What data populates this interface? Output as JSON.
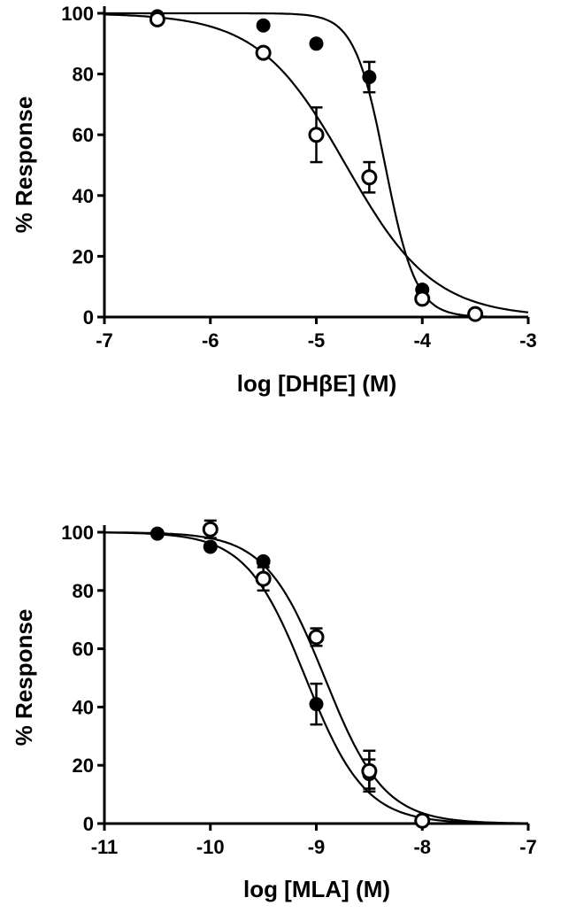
{
  "chart_data": [
    {
      "type": "scatter",
      "title": "",
      "xlabel": "log [DHβE] (M)",
      "ylabel": "% Response",
      "xlim": [
        -7,
        -3
      ],
      "ylim": [
        0,
        100
      ],
      "xticks": [
        "-7",
        "-6",
        "-5",
        "-4",
        "-3"
      ],
      "yticks": [
        "0",
        "20",
        "40",
        "60",
        "80",
        "100"
      ],
      "grid": false,
      "series": [
        {
          "name": "filled",
          "marker": "filled-circle",
          "x": [
            -6.5,
            -5.5,
            -5,
            -4.5,
            -4,
            -3.5
          ],
          "y": [
            99,
            96,
            90,
            79,
            9,
            1
          ],
          "err": [
            0,
            0,
            0,
            5,
            0,
            0
          ],
          "fit": {
            "top": 100,
            "bottom": 0,
            "logIC50": -4.35,
            "hill": 3.0
          }
        },
        {
          "name": "open",
          "marker": "open-circle",
          "x": [
            -6.5,
            -5.5,
            -5,
            -4.5,
            -4,
            -3.5
          ],
          "y": [
            98,
            87,
            60,
            46,
            6,
            1
          ],
          "err": [
            0,
            0,
            9,
            5,
            0,
            0
          ],
          "fit": {
            "top": 100,
            "bottom": 0,
            "logIC50": -4.72,
            "hill": 1.05
          }
        }
      ]
    },
    {
      "type": "scatter",
      "title": "",
      "xlabel": "log [MLA] (M)",
      "ylabel": "% Response",
      "xlim": [
        -11,
        -7
      ],
      "ylim": [
        0,
        100
      ],
      "xticks": [
        "-11",
        "-10",
        "-9",
        "-8",
        "-7"
      ],
      "yticks": [
        "0",
        "20",
        "40",
        "60",
        "80",
        "100"
      ],
      "grid": false,
      "series": [
        {
          "name": "filled",
          "marker": "filled-circle",
          "x": [
            -10.5,
            -10,
            -9.5,
            -9,
            -8.5,
            -8
          ],
          "y": [
            99.5,
            95,
            90,
            41,
            17,
            1
          ],
          "err": [
            0,
            0,
            0,
            7,
            5,
            0
          ],
          "fit": {
            "top": 100,
            "bottom": 0,
            "logIC50": -9.1,
            "hill": 1.55
          }
        },
        {
          "name": "open",
          "marker": "open-circle",
          "x": [
            -10,
            -9.5,
            -9,
            -8.5,
            -8
          ],
          "y": [
            101,
            84,
            64,
            18,
            1
          ],
          "err": [
            3,
            4,
            3,
            7,
            0
          ],
          "fit": {
            "top": 100,
            "bottom": 0,
            "logIC50": -8.92,
            "hill": 1.55
          }
        }
      ]
    }
  ]
}
